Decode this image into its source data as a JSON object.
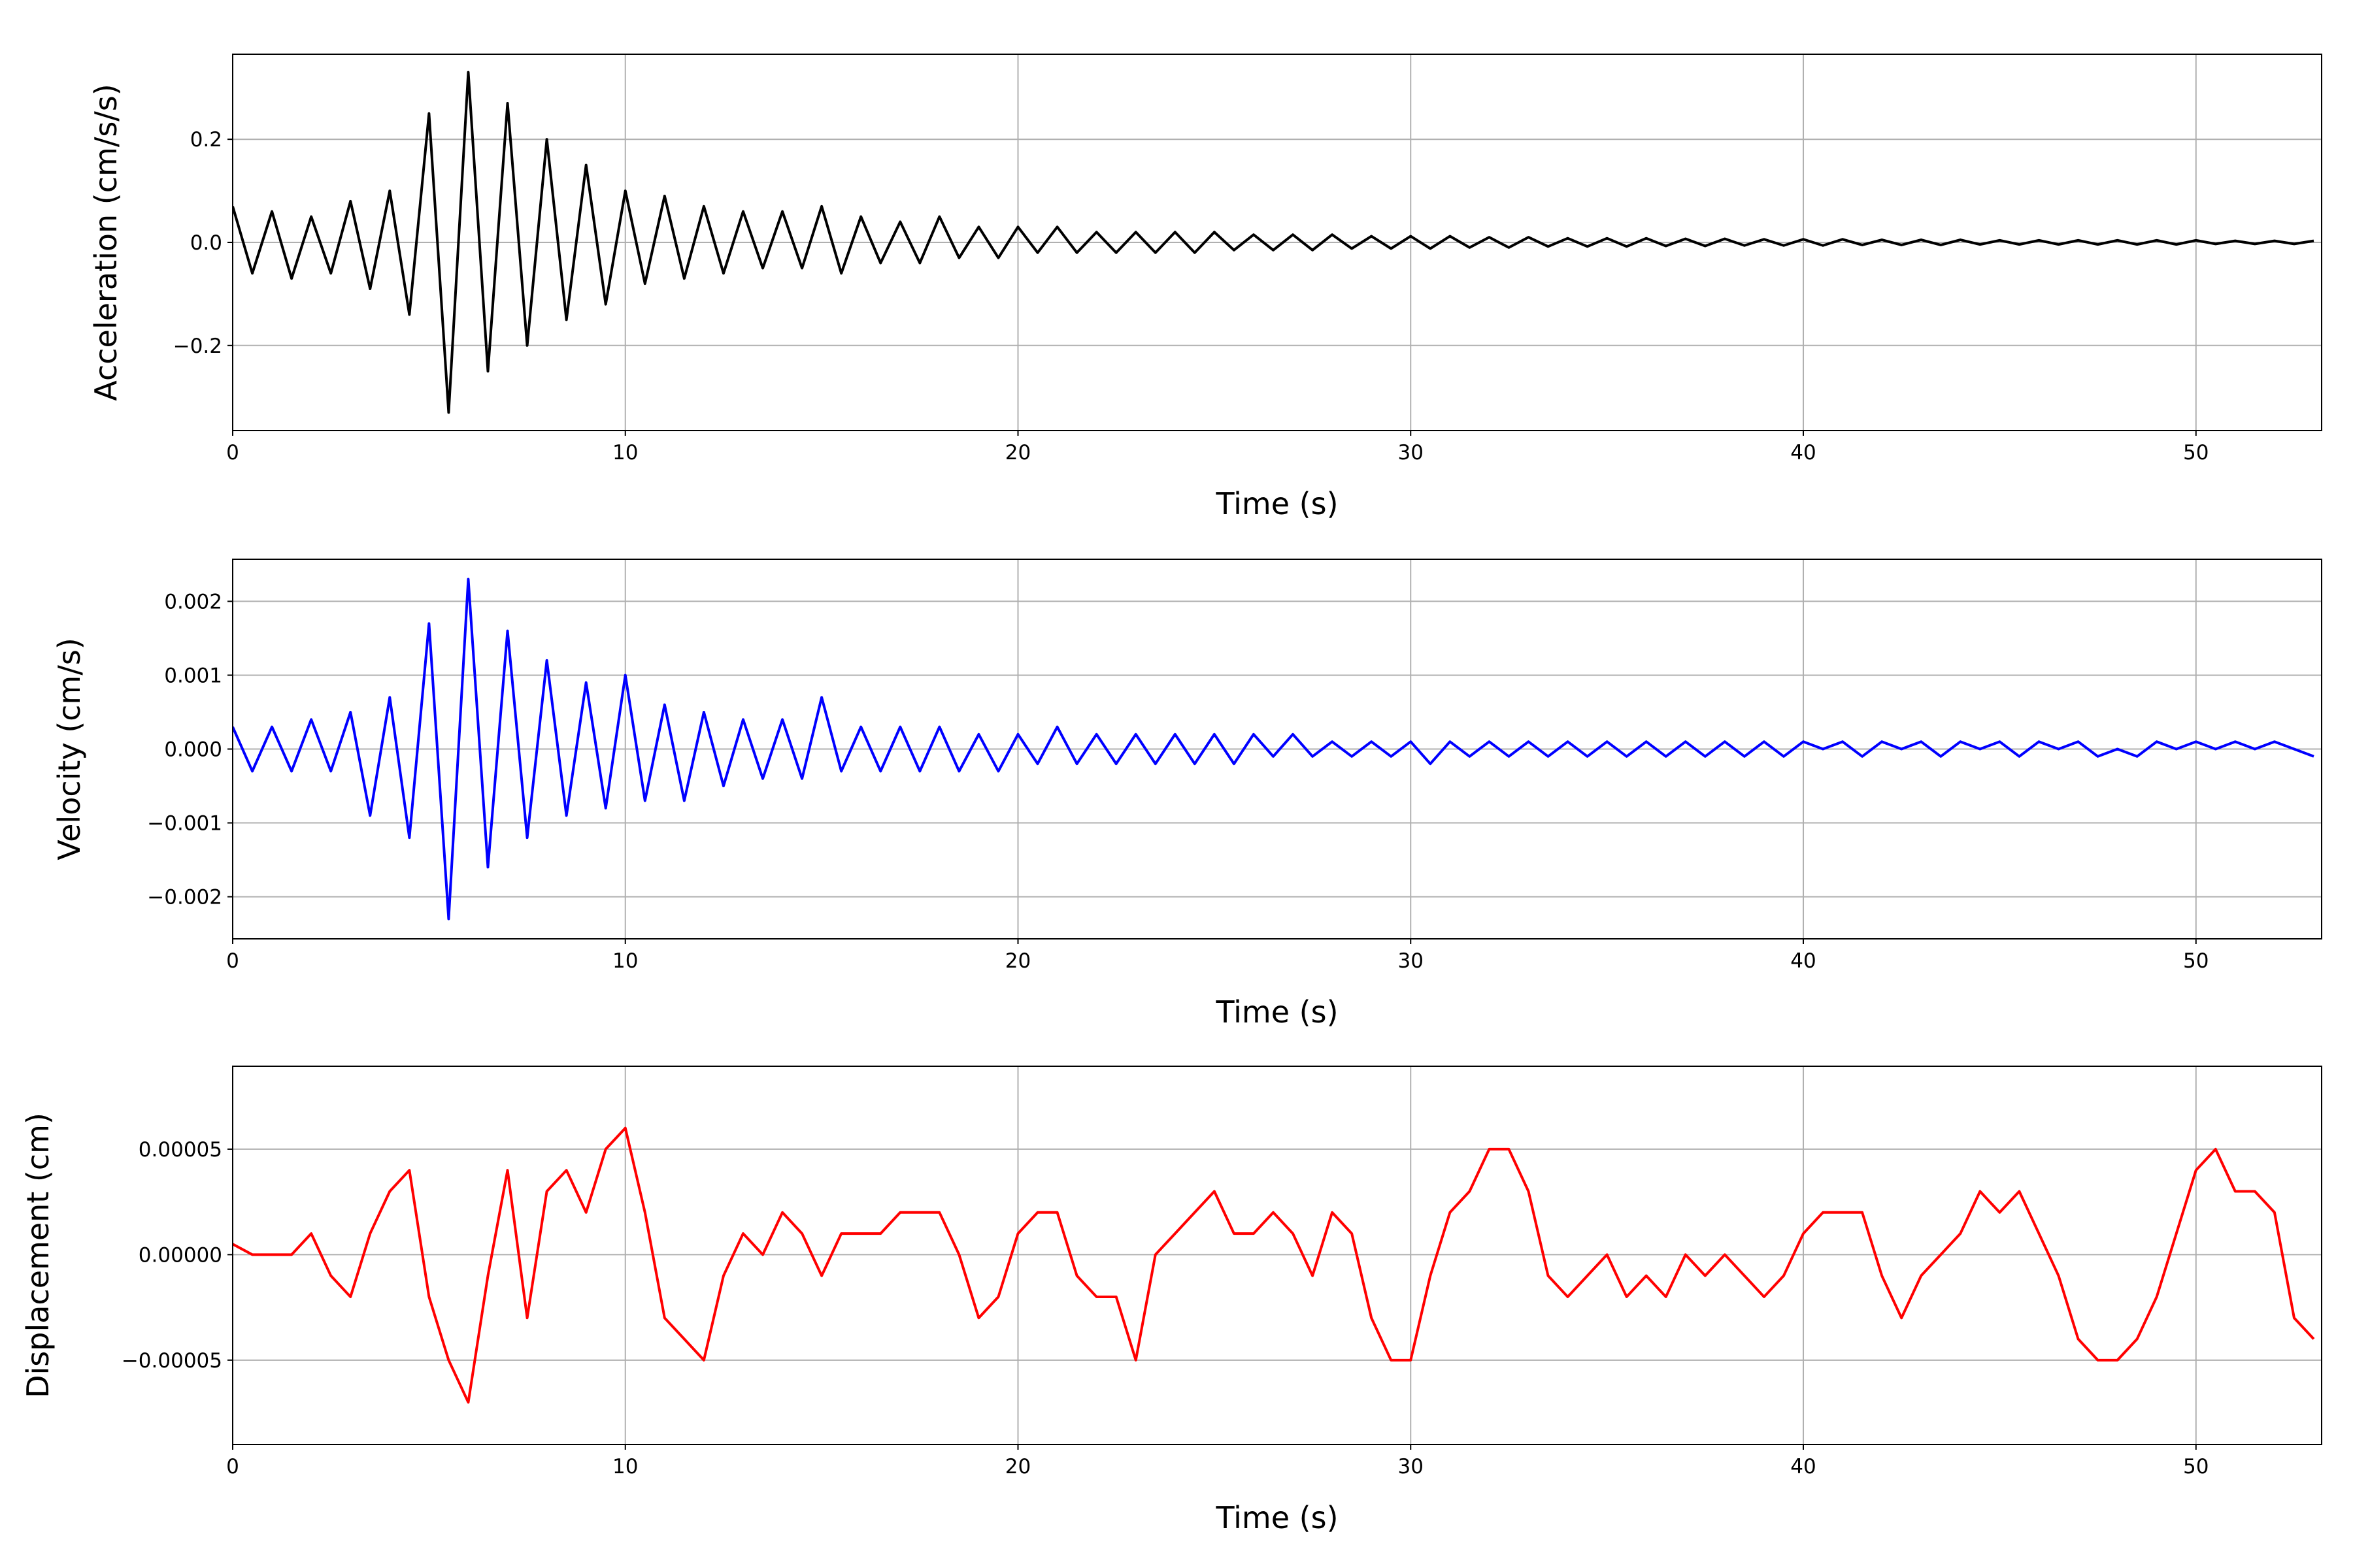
{
  "chart_data": [
    {
      "type": "line",
      "xlabel": "Time (s)",
      "ylabel": "Acceleration (cm/s/s)",
      "color": "#000000",
      "grid": true,
      "xlim": [
        0,
        53.2
      ],
      "ylim": [
        -0.365,
        0.365
      ],
      "xticks": [
        0,
        10,
        20,
        30,
        40,
        50
      ],
      "yticks": [
        {
          "value": -0.2,
          "label": "−0.2"
        },
        {
          "value": 0,
          "label": "0.0"
        },
        0.2
      ],
      "x": [
        0,
        0.5,
        1,
        1.5,
        2,
        2.5,
        3,
        3.5,
        4,
        4.5,
        5,
        5.5,
        6,
        6.5,
        7,
        7.5,
        8,
        8.5,
        9,
        9.5,
        10,
        10.5,
        11,
        11.5,
        12,
        12.5,
        13,
        13.5,
        14,
        14.5,
        15,
        15.5,
        16,
        16.5,
        17,
        17.5,
        18,
        18.5,
        19,
        19.5,
        20,
        20.5,
        21,
        21.5,
        22,
        22.5,
        23,
        23.5,
        24,
        24.5,
        25,
        25.5,
        26,
        26.5,
        27,
        27.5,
        28,
        28.5,
        29,
        29.5,
        30,
        30.5,
        31,
        31.5,
        32,
        32.5,
        33,
        33.5,
        34,
        34.5,
        35,
        35.5,
        36,
        36.5,
        37,
        37.5,
        38,
        38.5,
        39,
        39.5,
        40,
        40.5,
        41,
        41.5,
        42,
        42.5,
        43,
        43.5,
        44,
        44.5,
        45,
        45.5,
        46,
        46.5,
        47,
        47.5,
        48,
        48.5,
        49,
        49.5,
        50,
        50.5,
        51,
        51.5,
        52,
        52.5,
        53
      ],
      "values": [
        0.07,
        -0.06,
        0.06,
        -0.07,
        0.05,
        -0.06,
        0.08,
        -0.09,
        0.1,
        -0.14,
        0.25,
        -0.33,
        0.33,
        -0.25,
        0.27,
        -0.2,
        0.2,
        -0.15,
        0.15,
        -0.12,
        0.1,
        -0.08,
        0.09,
        -0.07,
        0.07,
        -0.06,
        0.06,
        -0.05,
        0.06,
        -0.05,
        0.07,
        -0.06,
        0.05,
        -0.04,
        0.04,
        -0.04,
        0.05,
        -0.03,
        0.03,
        -0.03,
        0.03,
        -0.02,
        0.03,
        -0.02,
        0.02,
        -0.02,
        0.02,
        -0.02,
        0.02,
        -0.02,
        0.02,
        -0.015,
        0.015,
        -0.015,
        0.015,
        -0.015,
        0.015,
        -0.012,
        0.012,
        -0.012,
        0.012,
        -0.012,
        0.012,
        -0.01,
        0.01,
        -0.01,
        0.01,
        -0.008,
        0.008,
        -0.008,
        0.008,
        -0.008,
        0.008,
        -0.007,
        0.007,
        -0.007,
        0.007,
        -0.006,
        0.006,
        -0.006,
        0.006,
        -0.006,
        0.006,
        -0.005,
        0.005,
        -0.005,
        0.005,
        -0.005,
        0.005,
        -0.004,
        0.004,
        -0.004,
        0.004,
        -0.004,
        0.004,
        -0.004,
        0.004,
        -0.004,
        0.004,
        -0.004,
        0.004,
        -0.003,
        0.003,
        -0.003,
        0.003,
        -0.003,
        0.003
      ]
    },
    {
      "type": "line",
      "xlabel": "Time (s)",
      "ylabel": "Velocity (cm/s)",
      "color": "#0000ff",
      "grid": true,
      "xlim": [
        0,
        53.2
      ],
      "ylim": [
        -0.00257,
        0.00257
      ],
      "xticks": [
        0,
        10,
        20,
        30,
        40,
        50
      ],
      "yticks": [
        {
          "value": -0.002,
          "label": "−0.002"
        },
        {
          "value": -0.001,
          "label": "−0.001"
        },
        {
          "value": 0,
          "label": "0.000"
        },
        0.001,
        0.002
      ],
      "x": [
        0,
        0.5,
        1,
        1.5,
        2,
        2.5,
        3,
        3.5,
        4,
        4.5,
        5,
        5.5,
        6,
        6.5,
        7,
        7.5,
        8,
        8.5,
        9,
        9.5,
        10,
        10.5,
        11,
        11.5,
        12,
        12.5,
        13,
        13.5,
        14,
        14.5,
        15,
        15.5,
        16,
        16.5,
        17,
        17.5,
        18,
        18.5,
        19,
        19.5,
        20,
        20.5,
        21,
        21.5,
        22,
        22.5,
        23,
        23.5,
        24,
        24.5,
        25,
        25.5,
        26,
        26.5,
        27,
        27.5,
        28,
        28.5,
        29,
        29.5,
        30,
        30.5,
        31,
        31.5,
        32,
        32.5,
        33,
        33.5,
        34,
        34.5,
        35,
        35.5,
        36,
        36.5,
        37,
        37.5,
        38,
        38.5,
        39,
        39.5,
        40,
        40.5,
        41,
        41.5,
        42,
        42.5,
        43,
        43.5,
        44,
        44.5,
        45,
        45.5,
        46,
        46.5,
        47,
        47.5,
        48,
        48.5,
        49,
        49.5,
        50,
        50.5,
        51,
        51.5,
        52,
        52.5,
        53
      ],
      "values": [
        0.0003,
        -0.0003,
        0.0003,
        -0.0003,
        0.0004,
        -0.0003,
        0.0005,
        -0.0009,
        0.0007,
        -0.0012,
        0.0017,
        -0.0023,
        0.0023,
        -0.0016,
        0.0016,
        -0.0012,
        0.0012,
        -0.0009,
        0.0009,
        -0.0008,
        0.001,
        -0.0007,
        0.0006,
        -0.0007,
        0.0005,
        -0.0005,
        0.0004,
        -0.0004,
        0.0004,
        -0.0004,
        0.0007,
        -0.0003,
        0.0003,
        -0.0003,
        0.0003,
        -0.0003,
        0.0003,
        -0.0003,
        0.0002,
        -0.0003,
        0.0002,
        -0.0002,
        0.0003,
        -0.0002,
        0.0002,
        -0.0002,
        0.0002,
        -0.0002,
        0.0002,
        -0.0002,
        0.0002,
        -0.0002,
        0.0002,
        -0.0001,
        0.0002,
        -0.0001,
        0.0001,
        -0.0001,
        0.0001,
        -0.0001,
        0.0001,
        -0.0002,
        0.0001,
        -0.0001,
        0.0001,
        -0.0001,
        0.0001,
        -0.0001,
        0.0001,
        -0.0001,
        0.0001,
        -0.0001,
        0.0001,
        -0.0001,
        0.0001,
        -0.0001,
        0.0001,
        -0.0001,
        0.0001,
        -0.0001,
        0.0001,
        0,
        0.0001,
        -0.0001,
        0.0001,
        0,
        0.0001,
        -0.0001,
        0.0001,
        0,
        0.0001,
        -0.0001,
        0.0001,
        0,
        0.0001,
        -0.0001,
        0,
        -0.0001,
        0.0001,
        0,
        0.0001,
        0,
        0.0001,
        0,
        0.0001,
        0,
        -0.0001
      ]
    },
    {
      "type": "line",
      "xlabel": "Time (s)",
      "ylabel": "Displacement (cm)",
      "color": "#ff0000",
      "grid": true,
      "xlim": [
        0,
        53.2
      ],
      "ylim": [
        -9e-05,
        8.93e-05
      ],
      "xticks": [
        0,
        10,
        20,
        30,
        40,
        50
      ],
      "yticks": [
        {
          "value": -5e-05,
          "label": "−0.00005"
        },
        {
          "value": 0,
          "label": "0.00000"
        },
        5e-05
      ],
      "x": [
        0,
        0.5,
        1,
        1.5,
        2,
        2.5,
        3,
        3.5,
        4,
        4.5,
        5,
        5.5,
        6,
        6.5,
        7,
        7.5,
        8,
        8.5,
        9,
        9.5,
        10,
        10.5,
        11,
        11.5,
        12,
        12.5,
        13,
        13.5,
        14,
        14.5,
        15,
        15.5,
        16,
        16.5,
        17,
        17.5,
        18,
        18.5,
        19,
        19.5,
        20,
        20.5,
        21,
        21.5,
        22,
        22.5,
        23,
        23.5,
        24,
        24.5,
        25,
        25.5,
        26,
        26.5,
        27,
        27.5,
        28,
        28.5,
        29,
        29.5,
        30,
        30.5,
        31,
        31.5,
        32,
        32.5,
        33,
        33.5,
        34,
        34.5,
        35,
        35.5,
        36,
        36.5,
        37,
        37.5,
        38,
        38.5,
        39,
        39.5,
        40,
        40.5,
        41,
        41.5,
        42,
        42.5,
        43,
        43.5,
        44,
        44.5,
        45,
        45.5,
        46,
        46.5,
        47,
        47.5,
        48,
        48.5,
        49,
        49.5,
        50,
        50.5,
        51,
        51.5,
        52,
        52.5,
        53
      ],
      "values": [
        5e-06,
        0,
        0,
        0,
        1e-05,
        -1e-05,
        -2e-05,
        1e-05,
        3e-05,
        4e-05,
        -2e-05,
        -5e-05,
        -7e-05,
        -1e-05,
        4e-05,
        -3e-05,
        3e-05,
        4e-05,
        2e-05,
        5e-05,
        6e-05,
        2e-05,
        -3e-05,
        -4e-05,
        -5e-05,
        -1e-05,
        1e-05,
        0,
        2e-05,
        1e-05,
        -1e-05,
        1e-05,
        1e-05,
        1e-05,
        2e-05,
        2e-05,
        2e-05,
        0,
        -3e-05,
        -2e-05,
        1e-05,
        2e-05,
        2e-05,
        -1e-05,
        -2e-05,
        -2e-05,
        -5e-05,
        0,
        1e-05,
        2e-05,
        3e-05,
        1e-05,
        1e-05,
        2e-05,
        1e-05,
        -1e-05,
        2e-05,
        1e-05,
        -3e-05,
        -5e-05,
        -5e-05,
        -1e-05,
        2e-05,
        3e-05,
        5e-05,
        5e-05,
        3e-05,
        -1e-05,
        -2e-05,
        -1e-05,
        0,
        -2e-05,
        -1e-05,
        -2e-05,
        0,
        -1e-05,
        0,
        -1e-05,
        -2e-05,
        -1e-05,
        1e-05,
        2e-05,
        2e-05,
        2e-05,
        -1e-05,
        -3e-05,
        -1e-05,
        0,
        1e-05,
        3e-05,
        2e-05,
        3e-05,
        1e-05,
        -1e-05,
        -4e-05,
        -5e-05,
        -5e-05,
        -4e-05,
        -2e-05,
        1e-05,
        4e-05,
        5e-05,
        3e-05,
        3e-05,
        2e-05,
        -3e-05,
        -4e-05
      ]
    }
  ]
}
